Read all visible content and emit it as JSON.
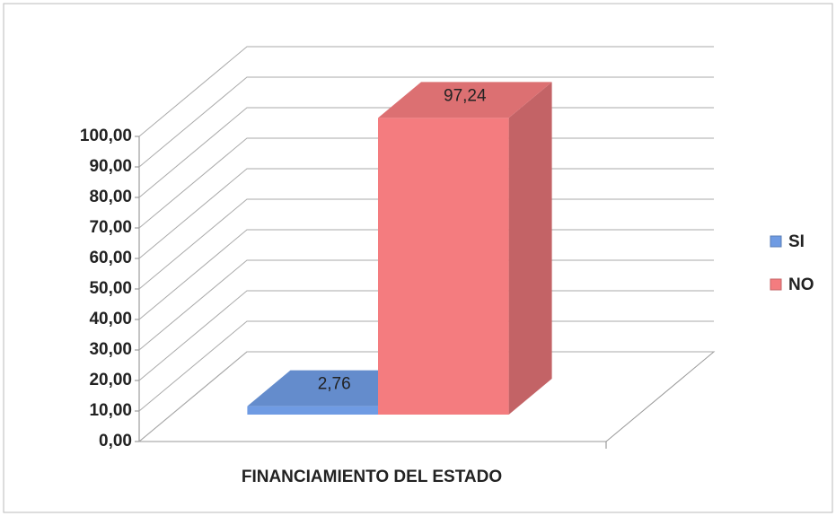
{
  "chart_data": {
    "type": "bar3d",
    "x_label": "FINANCIAMIENTO DEL ESTADO",
    "categories": [
      "FINANCIAMIENTO DEL ESTADO"
    ],
    "series": [
      {
        "name": "SI",
        "color": "#6f9be3",
        "values": [
          2.76
        ],
        "value_labels": [
          "2,76"
        ]
      },
      {
        "name": "NO",
        "color": "#f47c7f",
        "values": [
          97.24
        ],
        "value_labels": [
          "97,24"
        ]
      }
    ],
    "ylim": [
      0,
      100
    ],
    "yticks": [
      {
        "value": 0,
        "label": "0,00"
      },
      {
        "value": 10,
        "label": "10,00"
      },
      {
        "value": 20,
        "label": "20,00"
      },
      {
        "value": 30,
        "label": "30,00"
      },
      {
        "value": 40,
        "label": "40,00"
      },
      {
        "value": 50,
        "label": "50,00"
      },
      {
        "value": 60,
        "label": "60,00"
      },
      {
        "value": 70,
        "label": "70,00"
      },
      {
        "value": 80,
        "label": "80,00"
      },
      {
        "value": 90,
        "label": "90,00"
      },
      {
        "value": 100,
        "label": "100,00"
      }
    ],
    "grid": true,
    "legend": "right"
  }
}
